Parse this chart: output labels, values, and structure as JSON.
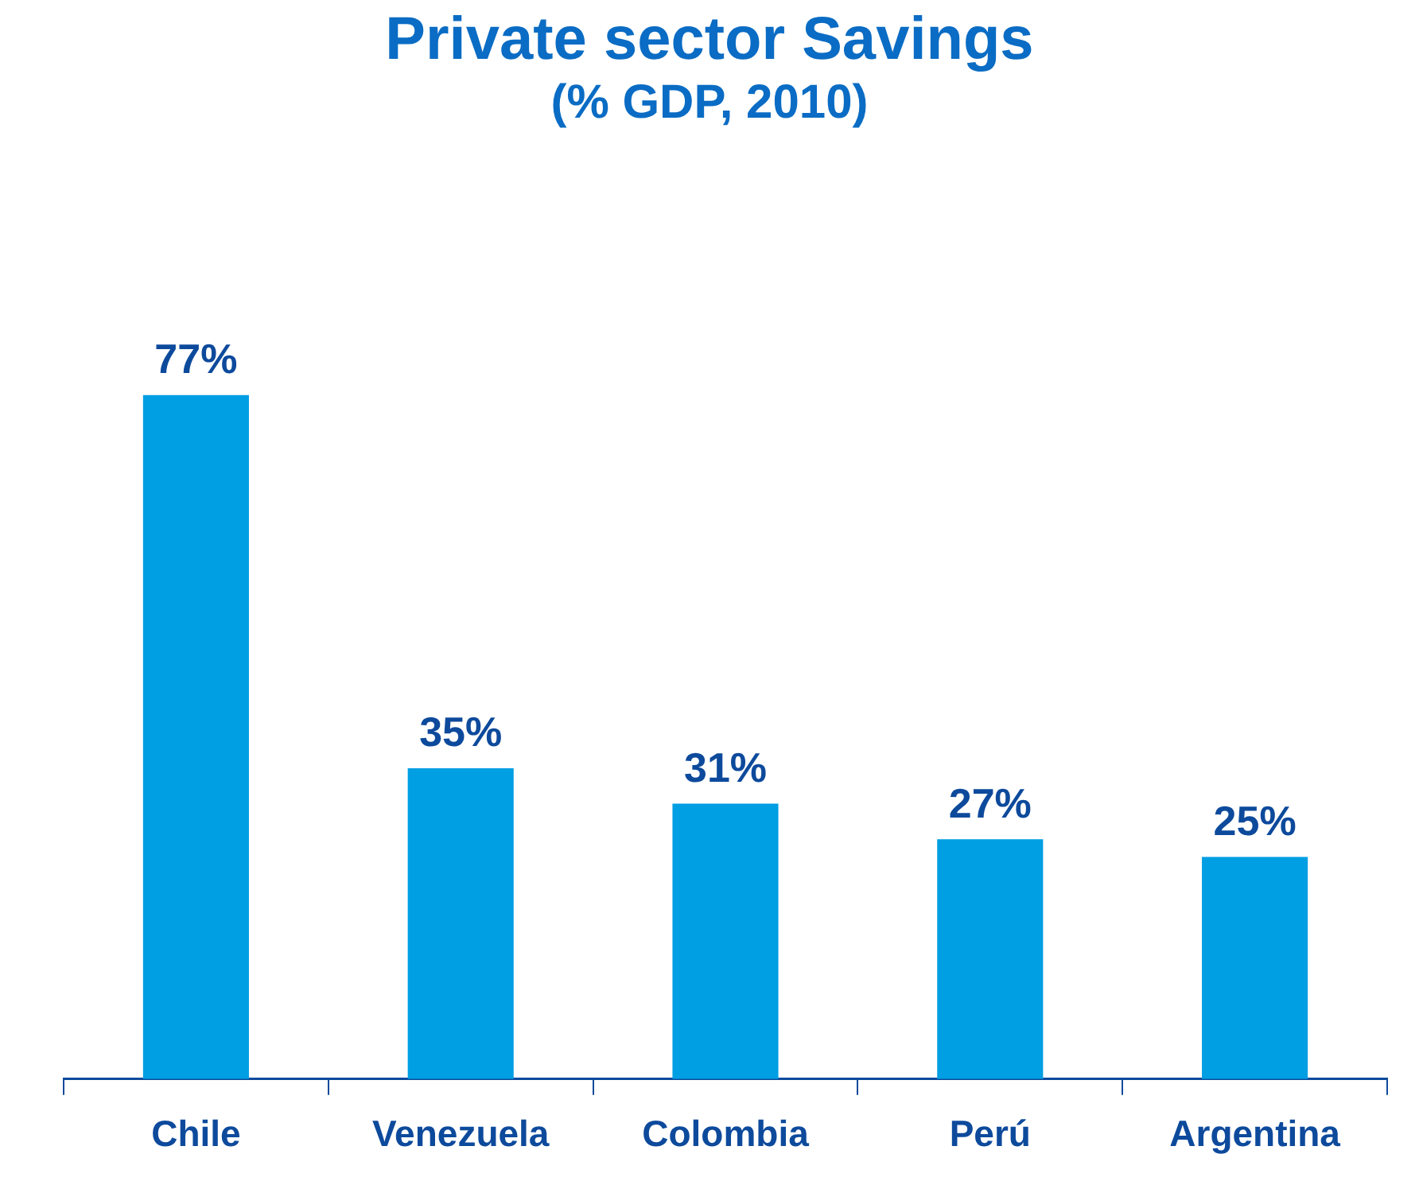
{
  "chart_data": {
    "type": "bar",
    "title": "Private sector Savings",
    "subtitle": "(% GDP, 2010)",
    "categories": [
      "Chile",
      "Venezuela",
      "Colombia",
      "Perú",
      "Argentina"
    ],
    "values": [
      77,
      35,
      31,
      27,
      25
    ],
    "value_labels": [
      "77%",
      "35%",
      "31%",
      "27%",
      "25%"
    ],
    "color": "#009ee3",
    "tick_labels": "x",
    "grid": false,
    "legend": false
  }
}
